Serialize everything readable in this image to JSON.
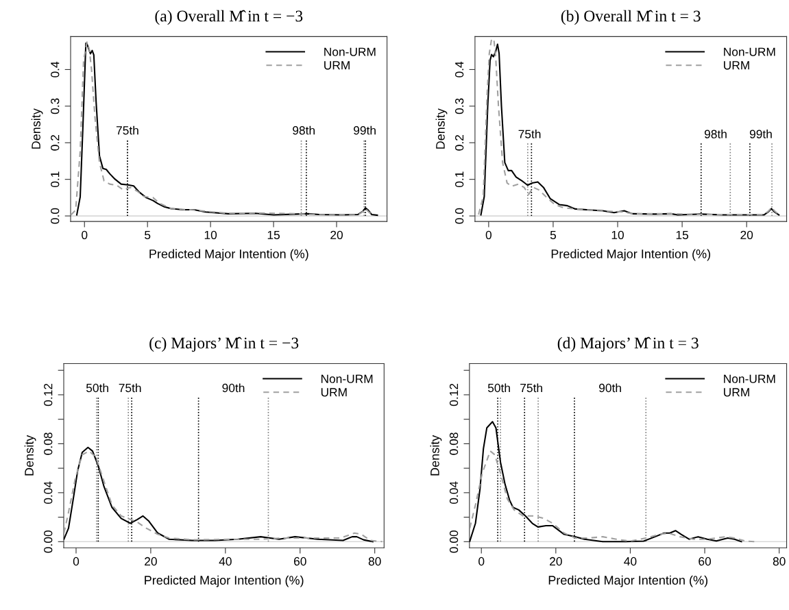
{
  "chart_data": [
    {
      "type": "line",
      "title": "(a) Overall M̂ in t = −3",
      "xlabel": "Predicted Major Intention (%)",
      "ylabel": "Density",
      "xlim": [
        -1.1,
        24.0
      ],
      "ylim": [
        -0.015,
        0.49
      ],
      "xticks": [
        0,
        5,
        10,
        15,
        20
      ],
      "yticks": [
        {
          "value": 0,
          "label": "0.0"
        },
        0.1,
        0.2,
        0.3,
        0.4
      ],
      "legend": "top right",
      "series": [
        {
          "name": "Non-URM",
          "color": "#000000",
          "line_style": "solid",
          "x": [
            -0.61,
            -0.34,
            -0.13,
            0.11,
            0.2,
            0.34,
            0.47,
            0.61,
            0.74,
            0.92,
            1.19,
            1.46,
            1.73,
            2.01,
            2.37,
            2.91,
            3.45,
            3.9,
            4.35,
            4.9,
            5.44,
            5.8,
            6.34,
            6.88,
            7.79,
            8.69,
            9.59,
            11.4,
            13.57,
            15.01,
            16.82,
            17.72,
            18.63,
            20.43,
            21.7,
            22.06,
            22.29,
            22.51,
            22.78,
            23.23
          ],
          "values": [
            0.003,
            0.052,
            0.239,
            0.472,
            0.47,
            0.456,
            0.443,
            0.452,
            0.44,
            0.313,
            0.164,
            0.13,
            0.127,
            0.115,
            0.102,
            0.087,
            0.085,
            0.082,
            0.065,
            0.05,
            0.042,
            0.034,
            0.025,
            0.02,
            0.017,
            0.017,
            0.011,
            0.006,
            0.007,
            0.003,
            0.005,
            0.006,
            0.004,
            0.003,
            0.004,
            0.012,
            0.022,
            0.016,
            0.004,
            0.002
          ]
        },
        {
          "name": "URM",
          "color": "#a0a0a0",
          "line_style": "dashed",
          "x": [
            -1.07,
            -0.7,
            -0.34,
            -0.07,
            0.2,
            0.38,
            0.56,
            0.83,
            1.19,
            1.55,
            2.01,
            2.55,
            3.09,
            3.63,
            4.17,
            4.72,
            5.44,
            5.98,
            6.88,
            8.69,
            11.4,
            13.57,
            16.82,
            18.63,
            21.7,
            22.06,
            22.29,
            22.6,
            22.96
          ],
          "values": [
            0.003,
            0.016,
            0.177,
            0.425,
            0.475,
            0.456,
            0.4,
            0.27,
            0.146,
            0.096,
            0.087,
            0.084,
            0.071,
            0.078,
            0.068,
            0.053,
            0.05,
            0.034,
            0.02,
            0.016,
            0.007,
            0.008,
            0.006,
            0.003,
            0.003,
            0.011,
            0.02,
            0.009,
            0.002
          ]
        }
      ],
      "ref_lines": [
        {
          "axis": "y",
          "value": 0,
          "color": "#d9d9d9",
          "line_style": "solid"
        },
        {
          "axis": "x",
          "value": 3.41,
          "color": "#808080",
          "line_style": "dotted",
          "label": "75th"
        },
        {
          "axis": "x",
          "value": 3.41,
          "color": "#000000",
          "line_style": "dotted"
        },
        {
          "axis": "x",
          "value": 17.2,
          "color": "#808080",
          "line_style": "dotted",
          "label": "98th"
        },
        {
          "axis": "x",
          "value": 17.6,
          "color": "#000000",
          "line_style": "dotted"
        },
        {
          "axis": "x",
          "value": 22.18,
          "color": "#808080",
          "line_style": "dotted",
          "label": "99th"
        },
        {
          "axis": "x",
          "value": 22.29,
          "color": "#000000",
          "line_style": "dotted"
        }
      ]
    },
    {
      "type": "line",
      "title": "(b) Overall M̂ in t = 3",
      "xlabel": "Predicted Major Intention (%)",
      "ylabel": "Density",
      "xlim": [
        -1.06,
        23.1
      ],
      "ylim": [
        -0.015,
        0.49
      ],
      "xticks": [
        0,
        5,
        10,
        15,
        20
      ],
      "yticks": [
        {
          "value": 0,
          "label": "0.0"
        },
        0.1,
        0.2,
        0.3,
        0.4
      ],
      "legend": "top right",
      "series": [
        {
          "name": "Non-URM",
          "color": "#000000",
          "line_style": "solid",
          "x": [
            -0.6,
            -0.34,
            -0.07,
            0.11,
            0.23,
            0.37,
            0.55,
            0.69,
            0.81,
            0.99,
            1.25,
            1.52,
            1.78,
            2.13,
            2.58,
            3.02,
            3.37,
            3.81,
            4.25,
            4.78,
            5.49,
            6.1,
            6.72,
            7.95,
            8.84,
            9.72,
            10.51,
            11.13,
            12.89,
            14.13,
            14.66,
            16.42,
            18.19,
            21.36,
            21.71,
            21.92,
            22.15,
            22.5
          ],
          "values": [
            0.003,
            0.053,
            0.301,
            0.425,
            0.441,
            0.435,
            0.45,
            0.469,
            0.444,
            0.301,
            0.146,
            0.124,
            0.124,
            0.106,
            0.096,
            0.084,
            0.09,
            0.093,
            0.078,
            0.047,
            0.031,
            0.028,
            0.019,
            0.016,
            0.014,
            0.009,
            0.014,
            0.006,
            0.005,
            0.006,
            0.003,
            0.005,
            0.003,
            0.003,
            0.012,
            0.02,
            0.011,
            0.003
          ]
        },
        {
          "name": "URM",
          "color": "#a0a0a0",
          "line_style": "dashed",
          "x": [
            -0.78,
            -0.42,
            -0.12,
            0.05,
            0.23,
            0.41,
            0.55,
            0.76,
            1.08,
            1.43,
            1.78,
            2.31,
            2.75,
            3.1,
            3.46,
            3.9,
            4.43,
            5.13,
            5.84,
            6.72,
            8.48,
            10.42,
            11.13,
            14.13,
            16.42,
            21.36,
            21.71,
            21.92,
            22.24,
            22.59
          ],
          "values": [
            0.004,
            0.053,
            0.332,
            0.444,
            0.484,
            0.481,
            0.431,
            0.301,
            0.146,
            0.09,
            0.081,
            0.087,
            0.078,
            0.059,
            0.078,
            0.071,
            0.053,
            0.031,
            0.022,
            0.019,
            0.014,
            0.011,
            0.006,
            0.006,
            0.004,
            0.004,
            0.014,
            0.023,
            0.011,
            0.002
          ]
        }
      ],
      "ref_lines": [
        {
          "axis": "y",
          "value": 0,
          "color": "#d9d9d9",
          "line_style": "solid"
        },
        {
          "axis": "x",
          "value": 3.03,
          "color": "#808080",
          "line_style": "dotted",
          "label": "75th"
        },
        {
          "axis": "x",
          "value": 3.32,
          "color": "#000000",
          "line_style": "dotted"
        },
        {
          "axis": "x",
          "value": 16.47,
          "color": "#000000",
          "line_style": "dotted",
          "label": "98th"
        },
        {
          "axis": "x",
          "value": 18.73,
          "color": "#808080",
          "line_style": "dotted"
        },
        {
          "axis": "x",
          "value": 20.25,
          "color": "#000000",
          "line_style": "dotted",
          "label": "99th"
        },
        {
          "axis": "x",
          "value": 21.96,
          "color": "#808080",
          "line_style": "dotted"
        }
      ]
    },
    {
      "type": "line",
      "title": "(c) Majors’ M̂ in t = −3",
      "xlabel": "Predicted Major Intention (%)",
      "ylabel": "Density",
      "xlim": [
        -3.3,
        82.5
      ],
      "ylim": [
        -0.005,
        0.1455
      ],
      "xticks": [
        0,
        20,
        40,
        60,
        80
      ],
      "yticks": [
        {
          "value": 0,
          "label": "0.00"
        },
        {
          "value": 0.02,
          "label": null
        },
        {
          "value": 0.04,
          "label": "0.04"
        },
        {
          "value": 0.06,
          "label": null
        },
        {
          "value": 0.08,
          "label": "0.08"
        },
        {
          "value": 0.1,
          "label": null
        },
        {
          "value": 0.12,
          "label": "0.12"
        },
        {
          "value": 0.14,
          "label": null
        }
      ],
      "legend": "top right",
      "series": [
        {
          "name": "Non-URM",
          "color": "#000000",
          "line_style": "solid",
          "x": [
            -3.25,
            -2.02,
            -0.8,
            0.43,
            1.65,
            3.19,
            4.41,
            5.94,
            7.48,
            9.62,
            12.07,
            14.52,
            16.36,
            17.89,
            19.42,
            21.88,
            24.94,
            31.07,
            37.19,
            43.32,
            49.45,
            54.35,
            58.64,
            64.77,
            71.51,
            73.96,
            75.18,
            77.02,
            79.47
          ],
          "values": [
            0.002,
            0.011,
            0.034,
            0.058,
            0.073,
            0.077,
            0.074,
            0.062,
            0.045,
            0.028,
            0.019,
            0.015,
            0.018,
            0.021,
            0.017,
            0.007,
            0.002,
            0.001,
            0.001,
            0.002,
            0.004,
            0.002,
            0.004,
            0.002,
            0.001,
            0.004,
            0.004,
            0.0015,
            0.0
          ]
        },
        {
          "name": "URM",
          "color": "#a0a0a0",
          "line_style": "dashed",
          "x": [
            -3.25,
            -2.02,
            -0.18,
            1.65,
            3.49,
            5.33,
            7.17,
            9.62,
            12.07,
            13.91,
            16.36,
            18.81,
            21.88,
            24.94,
            31.07,
            43.32,
            49.45,
            55.58,
            61.7,
            70.9,
            74.57,
            76.41,
            78.86,
            82.0
          ],
          "values": [
            0.007,
            0.024,
            0.052,
            0.071,
            0.074,
            0.069,
            0.052,
            0.03,
            0.021,
            0.019,
            0.016,
            0.011,
            0.006,
            0.003,
            0.0015,
            0.002,
            0.002,
            0.003,
            0.003,
            0.003,
            0.007,
            0.006,
            0.001,
            0.0
          ]
        }
      ],
      "ref_lines": [
        {
          "axis": "y",
          "value": 0,
          "color": "#d9d9d9",
          "line_style": "solid"
        },
        {
          "axis": "x",
          "value": 5.5,
          "color": "#808080",
          "line_style": "dotted",
          "label": "50th"
        },
        {
          "axis": "x",
          "value": 5.94,
          "color": "#000000",
          "line_style": "dotted"
        },
        {
          "axis": "x",
          "value": 14.0,
          "color": "#808080",
          "line_style": "dotted",
          "label": "75th"
        },
        {
          "axis": "x",
          "value": 14.9,
          "color": "#000000",
          "line_style": "dotted"
        },
        {
          "axis": "x",
          "value": 32.8,
          "color": "#000000",
          "line_style": "dotted",
          "label": "90th"
        },
        {
          "axis": "x",
          "value": 51.5,
          "color": "#808080",
          "line_style": "dotted"
        }
      ]
    },
    {
      "type": "line",
      "title": "(d) Majors’ M̂ in t = 3",
      "xlabel": "Predicted Major Intention (%)",
      "ylabel": "Density",
      "xlim": [
        -3.2,
        82.0
      ],
      "ylim": [
        -0.005,
        0.1455
      ],
      "xticks": [
        0,
        20,
        40,
        60,
        80
      ],
      "yticks": [
        {
          "value": 0,
          "label": "0.00"
        },
        {
          "value": 0.02,
          "label": null
        },
        {
          "value": 0.04,
          "label": "0.04"
        },
        {
          "value": 0.06,
          "label": null
        },
        {
          "value": 0.08,
          "label": "0.08"
        },
        {
          "value": 0.1,
          "label": null
        },
        {
          "value": 0.12,
          "label": "0.12"
        },
        {
          "value": 0.14,
          "label": null
        }
      ],
      "legend": "top right",
      "series": [
        {
          "name": "Non-URM",
          "color": "#000000",
          "line_style": "solid",
          "x": [
            -3.11,
            -1.59,
            -0.37,
            0.55,
            1.47,
            2.99,
            3.91,
            5.13,
            6.35,
            7.57,
            8.49,
            10.01,
            11.84,
            13.68,
            15.2,
            17.34,
            19.17,
            22.22,
            25.27,
            27.71,
            32.6,
            38.71,
            43.59,
            46.64,
            49.08,
            50.61,
            52.14,
            53.66,
            55.8,
            58.24,
            60.68,
            63.13,
            66.18,
            68.01,
            69.84
          ],
          "values": [
            0.0004,
            0.015,
            0.043,
            0.076,
            0.093,
            0.098,
            0.093,
            0.065,
            0.047,
            0.034,
            0.028,
            0.026,
            0.021,
            0.015,
            0.012,
            0.013,
            0.013,
            0.006,
            0.004,
            0.002,
            0.0,
            0.0,
            0.0004,
            0.004,
            0.007,
            0.007,
            0.009,
            0.006,
            0.002,
            0.004,
            0.002,
            0.0006,
            0.003,
            0.002,
            0.0
          ]
        },
        {
          "name": "URM",
          "color": "#a0a0a0",
          "line_style": "dashed",
          "x": [
            -3.11,
            -1.59,
            0.24,
            2.38,
            3.6,
            5.13,
            6.96,
            8.79,
            11.23,
            14.29,
            16.73,
            19.17,
            22.22,
            25.27,
            28.94,
            32.6,
            36.26,
            39.93,
            44.2,
            47.86,
            50.31,
            53.36,
            57.02,
            60.68,
            65.57,
            68.01,
            71.06,
            73.5
          ],
          "values": [
            0.011,
            0.03,
            0.056,
            0.074,
            0.071,
            0.056,
            0.035,
            0.026,
            0.021,
            0.021,
            0.019,
            0.015,
            0.007,
            0.003,
            0.003,
            0.004,
            0.002,
            0.0004,
            0.003,
            0.006,
            0.007,
            0.004,
            0.002,
            0.002,
            0.004,
            0.003,
            0.0004,
            0.0
          ]
        }
      ],
      "ref_lines": [
        {
          "axis": "y",
          "value": 0,
          "color": "#d9d9d9",
          "line_style": "solid"
        },
        {
          "axis": "x",
          "value": 4.4,
          "color": "#000000",
          "line_style": "dotted",
          "label": "50th"
        },
        {
          "axis": "x",
          "value": 5.13,
          "color": "#808080",
          "line_style": "dotted"
        },
        {
          "axis": "x",
          "value": 11.6,
          "color": "#000000",
          "line_style": "dotted",
          "label": "75th"
        },
        {
          "axis": "x",
          "value": 15.26,
          "color": "#808080",
          "line_style": "dotted"
        },
        {
          "axis": "x",
          "value": 25.0,
          "color": "#000000",
          "line_style": "dotted",
          "label": "90th"
        },
        {
          "axis": "x",
          "value": 44.2,
          "color": "#808080",
          "line_style": "dotted"
        }
      ]
    }
  ]
}
